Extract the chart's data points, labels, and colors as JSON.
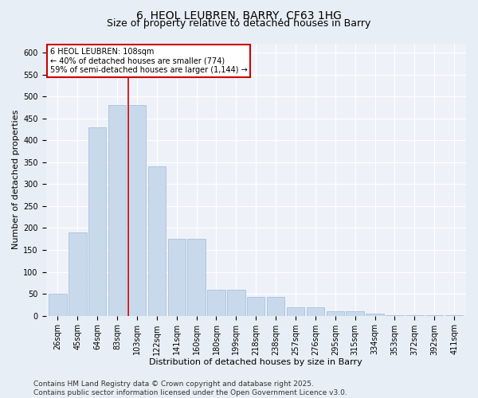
{
  "title_line1": "6, HEOL LEUBREN, BARRY, CF63 1HG",
  "title_line2": "Size of property relative to detached houses in Barry",
  "xlabel": "Distribution of detached houses by size in Barry",
  "ylabel": "Number of detached properties",
  "categories": [
    "26sqm",
    "45sqm",
    "64sqm",
    "83sqm",
    "103sqm",
    "122sqm",
    "141sqm",
    "160sqm",
    "180sqm",
    "199sqm",
    "218sqm",
    "238sqm",
    "257sqm",
    "276sqm",
    "295sqm",
    "315sqm",
    "334sqm",
    "353sqm",
    "372sqm",
    "392sqm",
    "411sqm"
  ],
  "values": [
    50,
    190,
    430,
    480,
    480,
    340,
    175,
    175,
    60,
    60,
    43,
    43,
    20,
    20,
    10,
    11,
    5,
    2,
    1,
    1,
    1
  ],
  "bar_color": "#c9d9ec",
  "bar_edge_color": "#a0b8d8",
  "vline_index": 4,
  "vline_color": "#cc0000",
  "annotation_box_text": "6 HEOL LEUBREN: 108sqm\n← 40% of detached houses are smaller (774)\n59% of semi-detached houses are larger (1,144) →",
  "annotation_box_color": "#cc0000",
  "ylim": [
    0,
    620
  ],
  "yticks": [
    0,
    50,
    100,
    150,
    200,
    250,
    300,
    350,
    400,
    450,
    500,
    550,
    600
  ],
  "footer_text": "Contains HM Land Registry data © Crown copyright and database right 2025.\nContains public sector information licensed under the Open Government Licence v3.0.",
  "bg_color": "#e8eef5",
  "plot_bg_color": "#eef2f8",
  "grid_color": "#ffffff",
  "title1_fontsize": 10,
  "title2_fontsize": 9,
  "axis_label_fontsize": 8,
  "tick_fontsize": 7,
  "annot_fontsize": 7,
  "footer_fontsize": 6.5
}
